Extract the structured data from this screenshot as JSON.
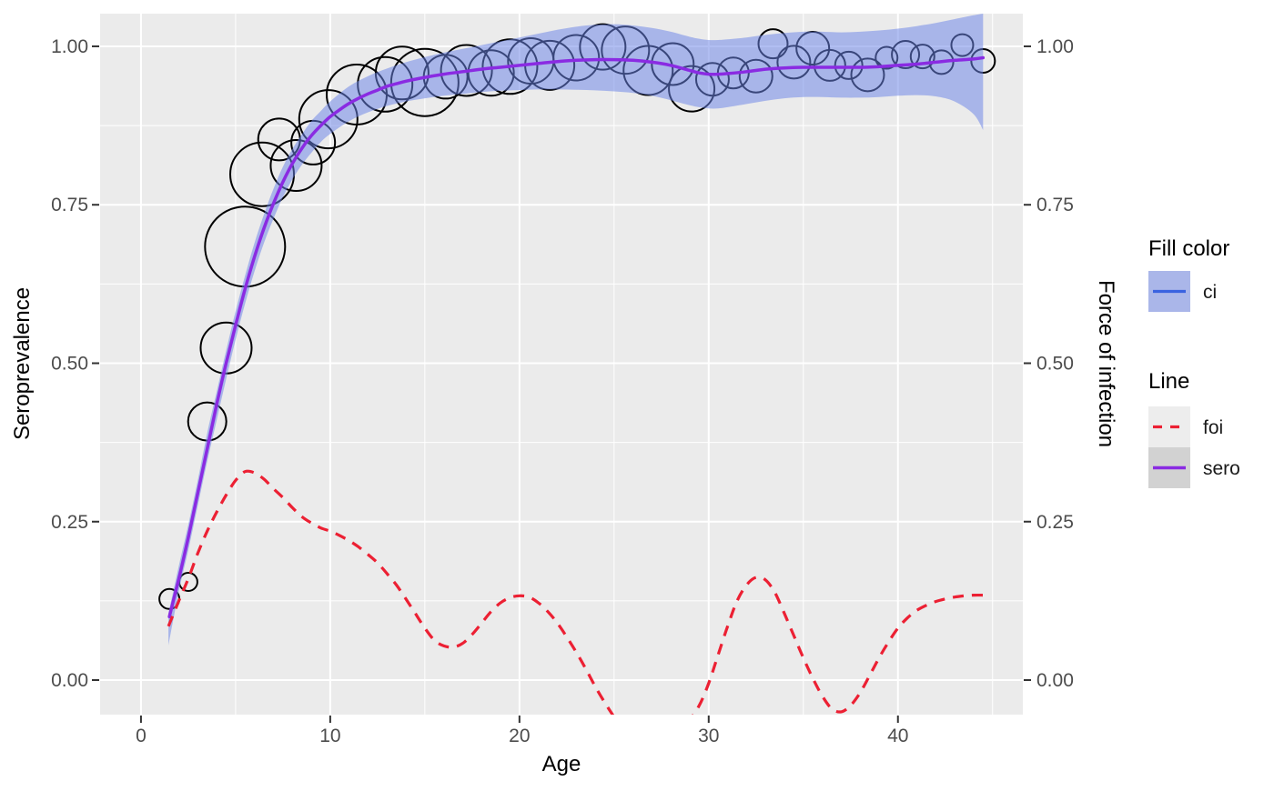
{
  "figure": {
    "background": "#FFFFFF",
    "panel_background": "#EBEBEB",
    "grid_color": "#FFFFFF",
    "tick_mark_color": "#333333",
    "tick_label_color": "#4D4D4D"
  },
  "axes": {
    "x": {
      "title": "Age",
      "major_ticks": [
        0,
        10,
        20,
        30,
        40
      ],
      "major_tick_labels": [
        "0",
        "10",
        "20",
        "30",
        "40"
      ],
      "minor_ticks": [
        5,
        15,
        25,
        35,
        45
      ]
    },
    "y_left": {
      "title": "Seroprevalence",
      "major_ticks": [
        1.0,
        0.75,
        0.5,
        0.25,
        0.0
      ],
      "major_tick_labels": [
        "1.00",
        "0.75",
        "0.50",
        "0.25",
        "0.00"
      ],
      "minor_ticks": [
        0.875,
        0.625,
        0.375,
        0.125
      ]
    },
    "y_right": {
      "title": "Force of infection",
      "major_ticks": [
        1.0,
        0.75,
        0.5,
        0.25,
        0.0
      ],
      "major_tick_labels": [
        "1.00",
        "0.75",
        "0.50",
        "0.25",
        "0.00"
      ],
      "minor_ticks": [
        0.875,
        0.625,
        0.375,
        0.125
      ]
    }
  },
  "legend": {
    "fill_group": {
      "title": "Fill color",
      "items": [
        {
          "label": "ci",
          "swatch_fill": "#AAB6E9",
          "line_color": "#3A62E0",
          "line_style": "solid"
        }
      ]
    },
    "line_group": {
      "title": "Line",
      "items": [
        {
          "label": "foi",
          "swatch_fill": "#EDEDED",
          "line_color": "#EC2033",
          "line_style": "dashed"
        },
        {
          "label": "sero",
          "swatch_fill": "#D2D2D2",
          "line_color": "#8A2BE2",
          "line_style": "solid"
        }
      ]
    }
  },
  "chart_data": {
    "type": "line",
    "title": "",
    "xlabel": "Age",
    "ylabel_left": "Seroprevalence",
    "ylabel_right": "Force of infection",
    "xlim": [
      -2.16,
      46.6
    ],
    "ylim": [
      -0.0545,
      1.0516
    ],
    "grid": true,
    "legend_position": "right",
    "series": [
      {
        "name": "ci",
        "kind": "ribbon",
        "fill": "rgba(108,132,230,0.53)",
        "points": [
          [
            1.45,
            0.055,
            0.105
          ],
          [
            2,
            0.14,
            0.18
          ],
          [
            2.5,
            0.205,
            0.245
          ],
          [
            3,
            0.275,
            0.315
          ],
          [
            3.5,
            0.345,
            0.39
          ],
          [
            4,
            0.41,
            0.455
          ],
          [
            4.5,
            0.475,
            0.52
          ],
          [
            5,
            0.537,
            0.582
          ],
          [
            5.5,
            0.594,
            0.638
          ],
          [
            6,
            0.645,
            0.69
          ],
          [
            6.5,
            0.69,
            0.735
          ],
          [
            7,
            0.728,
            0.775
          ],
          [
            7.5,
            0.762,
            0.81
          ],
          [
            8,
            0.79,
            0.838
          ],
          [
            8.5,
            0.813,
            0.861
          ],
          [
            9,
            0.832,
            0.882
          ],
          [
            9.5,
            0.849,
            0.898
          ],
          [
            10,
            0.862,
            0.913
          ],
          [
            11,
            0.882,
            0.937
          ],
          [
            12,
            0.896,
            0.953
          ],
          [
            13,
            0.906,
            0.965
          ],
          [
            14,
            0.913,
            0.975
          ],
          [
            15,
            0.918,
            0.983
          ],
          [
            16,
            0.922,
            0.99
          ],
          [
            17,
            0.925,
            0.996
          ],
          [
            18,
            0.928,
            1.002
          ],
          [
            19,
            0.93,
            1.008
          ],
          [
            20,
            0.931,
            1.014
          ],
          [
            21,
            0.932,
            1.02
          ],
          [
            22,
            0.932,
            1.026
          ],
          [
            23,
            0.9315,
            1.031
          ],
          [
            24,
            0.9305,
            1.034
          ],
          [
            25,
            0.929,
            1.035
          ],
          [
            26,
            0.9265,
            1.033
          ],
          [
            27,
            0.922,
            1.029
          ],
          [
            28,
            0.915,
            1.023
          ],
          [
            29,
            0.907,
            1.015
          ],
          [
            29.5,
            0.904,
            1.012
          ],
          [
            30,
            0.902,
            1.01
          ],
          [
            30.5,
            0.902,
            1.01
          ],
          [
            31,
            0.904,
            1.011
          ],
          [
            32,
            0.909,
            1.014
          ],
          [
            33,
            0.914,
            1.018
          ],
          [
            34,
            0.918,
            1.021
          ],
          [
            35,
            0.92,
            1.023
          ],
          [
            36,
            0.92,
            1.023
          ],
          [
            37,
            0.919,
            1.022
          ],
          [
            38,
            0.919,
            1.023
          ],
          [
            39,
            0.92,
            1.025
          ],
          [
            40,
            0.922,
            1.028
          ],
          [
            41,
            0.923,
            1.032
          ],
          [
            42,
            0.921,
            1.037
          ],
          [
            43,
            0.913,
            1.043
          ],
          [
            44,
            0.893,
            1.049
          ],
          [
            44.5,
            0.868,
            1.0516
          ]
        ]
      },
      {
        "name": "sero",
        "kind": "line",
        "style": "solid",
        "color": "#8A2BE2",
        "width": 3.5,
        "points": [
          [
            1.5,
            0.1
          ],
          [
            2,
            0.16
          ],
          [
            2.5,
            0.225
          ],
          [
            3,
            0.295
          ],
          [
            3.5,
            0.365
          ],
          [
            4,
            0.435
          ],
          [
            4.5,
            0.5
          ],
          [
            5,
            0.56
          ],
          [
            5.5,
            0.617
          ],
          [
            6,
            0.668
          ],
          [
            6.5,
            0.713
          ],
          [
            7,
            0.752
          ],
          [
            7.5,
            0.786
          ],
          [
            8,
            0.815
          ],
          [
            8.5,
            0.839
          ],
          [
            9,
            0.859
          ],
          [
            9.5,
            0.875
          ],
          [
            10,
            0.889
          ],
          [
            10.5,
            0.9
          ],
          [
            11,
            0.91
          ],
          [
            11.5,
            0.918
          ],
          [
            12,
            0.925
          ],
          [
            12.5,
            0.931
          ],
          [
            13,
            0.937
          ],
          [
            13.5,
            0.941
          ],
          [
            14,
            0.945
          ],
          [
            15,
            0.951
          ],
          [
            16,
            0.956
          ],
          [
            17,
            0.96
          ],
          [
            18,
            0.964
          ],
          [
            19,
            0.967
          ],
          [
            20,
            0.97
          ],
          [
            21,
            0.973
          ],
          [
            22,
            0.976
          ],
          [
            23,
            0.978
          ],
          [
            24,
            0.979
          ],
          [
            25,
            0.979
          ],
          [
            26,
            0.978
          ],
          [
            27,
            0.975
          ],
          [
            28,
            0.97
          ],
          [
            29,
            0.962
          ],
          [
            29.5,
            0.958
          ],
          [
            30,
            0.956
          ],
          [
            30.5,
            0.956
          ],
          [
            31,
            0.957
          ],
          [
            32,
            0.96
          ],
          [
            33,
            0.964
          ],
          [
            34,
            0.966
          ],
          [
            35,
            0.967
          ],
          [
            36,
            0.967
          ],
          [
            37,
            0.967
          ],
          [
            38,
            0.967
          ],
          [
            39,
            0.968
          ],
          [
            40,
            0.97
          ],
          [
            41,
            0.972
          ],
          [
            42,
            0.975
          ],
          [
            43,
            0.978
          ],
          [
            44,
            0.98
          ],
          [
            44.5,
            0.982
          ]
        ]
      },
      {
        "name": "foi",
        "kind": "line",
        "style": "dashed",
        "color": "#EC2033",
        "width": 3.2,
        "points": [
          [
            1.45,
            0.085
          ],
          [
            2,
            0.125
          ],
          [
            2.5,
            0.16
          ],
          [
            3,
            0.2
          ],
          [
            3.5,
            0.235
          ],
          [
            4,
            0.265
          ],
          [
            4.5,
            0.292
          ],
          [
            5,
            0.315
          ],
          [
            5.5,
            0.329
          ],
          [
            6,
            0.327
          ],
          [
            6.5,
            0.317
          ],
          [
            7,
            0.302
          ],
          [
            7.5,
            0.288
          ],
          [
            8,
            0.272
          ],
          [
            8.5,
            0.258
          ],
          [
            9,
            0.248
          ],
          [
            9.5,
            0.24
          ],
          [
            10,
            0.235
          ],
          [
            10.5,
            0.228
          ],
          [
            11,
            0.22
          ],
          [
            11.5,
            0.21
          ],
          [
            12,
            0.198
          ],
          [
            12.5,
            0.185
          ],
          [
            13,
            0.168
          ],
          [
            13.5,
            0.15
          ],
          [
            14,
            0.128
          ],
          [
            14.5,
            0.105
          ],
          [
            15,
            0.082
          ],
          [
            15.5,
            0.063
          ],
          [
            16,
            0.054
          ],
          [
            16.5,
            0.052
          ],
          [
            17,
            0.058
          ],
          [
            17.5,
            0.072
          ],
          [
            18,
            0.09
          ],
          [
            18.5,
            0.108
          ],
          [
            19,
            0.122
          ],
          [
            19.5,
            0.13
          ],
          [
            20,
            0.133
          ],
          [
            20.5,
            0.131
          ],
          [
            21,
            0.122
          ],
          [
            21.5,
            0.108
          ],
          [
            22,
            0.09
          ],
          [
            22.5,
            0.068
          ],
          [
            23,
            0.044
          ],
          [
            23.5,
            0.018
          ],
          [
            24,
            -0.01
          ],
          [
            24.5,
            -0.035
          ],
          [
            25,
            -0.058
          ],
          [
            25.5,
            -0.078
          ],
          [
            26,
            -0.088
          ],
          [
            26.5,
            -0.09
          ],
          [
            27,
            -0.088
          ],
          [
            27.5,
            -0.082
          ],
          [
            28,
            -0.078
          ],
          [
            28.5,
            -0.075
          ],
          [
            29,
            -0.062
          ],
          [
            29.5,
            -0.04
          ],
          [
            30,
            -0.005
          ],
          [
            30.5,
            0.04
          ],
          [
            31,
            0.085
          ],
          [
            31.5,
            0.125
          ],
          [
            32,
            0.15
          ],
          [
            32.5,
            0.162
          ],
          [
            33,
            0.158
          ],
          [
            33.5,
            0.138
          ],
          [
            34,
            0.105
          ],
          [
            34.5,
            0.07
          ],
          [
            35,
            0.035
          ],
          [
            35.5,
            0.003
          ],
          [
            36,
            -0.025
          ],
          [
            36.5,
            -0.045
          ],
          [
            37,
            -0.05
          ],
          [
            37.5,
            -0.04
          ],
          [
            38,
            -0.02
          ],
          [
            38.5,
            0.007
          ],
          [
            39,
            0.035
          ],
          [
            39.5,
            0.06
          ],
          [
            40,
            0.082
          ],
          [
            40.5,
            0.098
          ],
          [
            41,
            0.11
          ],
          [
            41.5,
            0.118
          ],
          [
            42,
            0.124
          ],
          [
            42.5,
            0.128
          ],
          [
            43,
            0.131
          ],
          [
            43.5,
            0.133
          ],
          [
            44,
            0.134
          ],
          [
            44.5,
            0.134
          ]
        ]
      },
      {
        "name": "observations",
        "kind": "bubble",
        "stroke": "#000000",
        "stroke_width": 2,
        "points_format": [
          "age",
          "seroprevalence",
          "radius_px"
        ],
        "points": [
          [
            1.5,
            0.128,
            11
          ],
          [
            2.5,
            0.155,
            10
          ],
          [
            3.5,
            0.408,
            21
          ],
          [
            4.5,
            0.524,
            28
          ],
          [
            5.5,
            0.684,
            44
          ],
          [
            6.4,
            0.798,
            35
          ],
          [
            7.3,
            0.853,
            23
          ],
          [
            8.2,
            0.812,
            28
          ],
          [
            9.1,
            0.848,
            24
          ],
          [
            9.9,
            0.885,
            32
          ],
          [
            11.4,
            0.924,
            33
          ],
          [
            12.9,
            0.94,
            30
          ],
          [
            13.8,
            0.958,
            29
          ],
          [
            15,
            0.943,
            37
          ],
          [
            16.1,
            0.952,
            24
          ],
          [
            17.2,
            0.962,
            28
          ],
          [
            18.5,
            0.958,
            25
          ],
          [
            19.5,
            0.968,
            30
          ],
          [
            20.6,
            0.977,
            25
          ],
          [
            21.6,
            0.97,
            27
          ],
          [
            23,
            0.982,
            25
          ],
          [
            24.4,
            0.999,
            25
          ],
          [
            25.6,
            0.994,
            26
          ],
          [
            26.8,
            0.962,
            27
          ],
          [
            28.1,
            0.972,
            23
          ],
          [
            29.1,
            0.933,
            25
          ],
          [
            30.2,
            0.948,
            18
          ],
          [
            31.3,
            0.958,
            17
          ],
          [
            32.5,
            0.953,
            18
          ],
          [
            33.4,
            1.004,
            16
          ],
          [
            34.5,
            0.975,
            18
          ],
          [
            35.5,
            0.997,
            18
          ],
          [
            36.4,
            0.97,
            17
          ],
          [
            37.4,
            0.97,
            15
          ],
          [
            38.4,
            0.955,
            18
          ],
          [
            39.4,
            0.982,
            12
          ],
          [
            40.4,
            0.987,
            15
          ],
          [
            41.3,
            0.984,
            13
          ],
          [
            42.3,
            0.975,
            13
          ],
          [
            43.4,
            1.002,
            12
          ],
          [
            44.5,
            0.977,
            13
          ]
        ]
      }
    ]
  }
}
